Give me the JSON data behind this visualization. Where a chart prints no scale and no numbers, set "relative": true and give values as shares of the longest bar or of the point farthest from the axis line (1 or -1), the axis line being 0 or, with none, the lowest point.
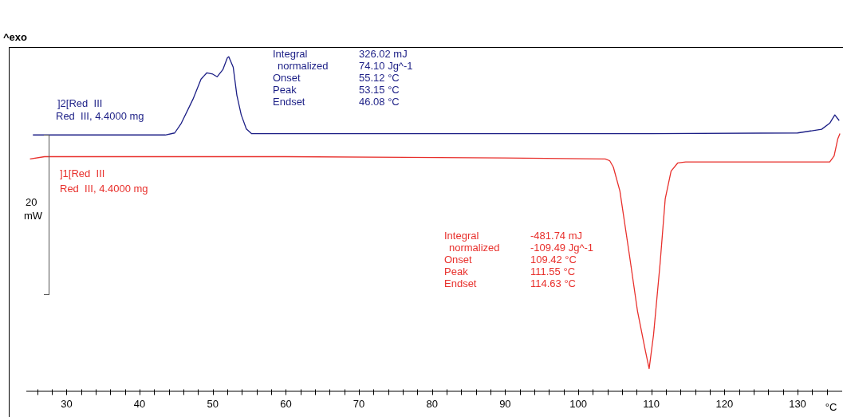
{
  "chart_data": {
    "type": "line",
    "relative": true,
    "xlabel": "°C",
    "xlim": [
      24.5,
      136
    ],
    "xticks": [
      {
        "value": 26,
        "label": null
      },
      {
        "value": 28,
        "label": null
      },
      30,
      {
        "value": 32,
        "label": null
      },
      {
        "value": 34,
        "label": null
      },
      {
        "value": 36,
        "label": null
      },
      {
        "value": 38,
        "label": null
      },
      40,
      {
        "value": 42,
        "label": null
      },
      {
        "value": 44,
        "label": null
      },
      {
        "value": 46,
        "label": null
      },
      {
        "value": 48,
        "label": null
      },
      50,
      {
        "value": 52,
        "label": null
      },
      {
        "value": 54,
        "label": null
      },
      {
        "value": 56,
        "label": null
      },
      {
        "value": 58,
        "label": null
      },
      60,
      {
        "value": 62,
        "label": null
      },
      {
        "value": 64,
        "label": null
      },
      {
        "value": 66,
        "label": null
      },
      {
        "value": 68,
        "label": null
      },
      70,
      {
        "value": 72,
        "label": null
      },
      {
        "value": 74,
        "label": null
      },
      {
        "value": 76,
        "label": null
      },
      {
        "value": 78,
        "label": null
      },
      80,
      {
        "value": 82,
        "label": null
      },
      {
        "value": 84,
        "label": null
      },
      {
        "value": 86,
        "label": null
      },
      {
        "value": 88,
        "label": null
      },
      90,
      {
        "value": 92,
        "label": null
      },
      {
        "value": 94,
        "label": null
      },
      {
        "value": 96,
        "label": null
      },
      {
        "value": 98,
        "label": null
      },
      100,
      {
        "value": 102,
        "label": null
      },
      {
        "value": 104,
        "label": null
      },
      {
        "value": 106,
        "label": null
      },
      {
        "value": 108,
        "label": null
      },
      110,
      {
        "value": 112,
        "label": null
      },
      {
        "value": 114,
        "label": null
      },
      {
        "value": 116,
        "label": null
      },
      {
        "value": 118,
        "label": null
      },
      120,
      {
        "value": 122,
        "label": null
      },
      {
        "value": 124,
        "label": null
      },
      {
        "value": 126,
        "label": null
      },
      {
        "value": 128,
        "label": null
      },
      130,
      {
        "value": 132,
        "label": null
      },
      {
        "value": 134,
        "label": null
      }
    ],
    "grid": false,
    "legend": false,
    "series": [
      {
        "name": "]2[Red  III",
        "color": "#1c1f86",
        "x": [
          25.4,
          43.5,
          44.8,
          45.7,
          47.3,
          48.4,
          49.2,
          50.0,
          50.6,
          51.4,
          52.0,
          52.2,
          52.8,
          53.3,
          53.9,
          54.6,
          55.3,
          56.2,
          80.0,
          110.0,
          130.0,
          133.3,
          134.4,
          135.1,
          135.7
        ],
        "values": [
          0.766,
          0.766,
          0.772,
          0.801,
          0.873,
          0.933,
          0.952,
          0.948,
          0.94,
          0.962,
          0.997,
          1,
          0.969,
          0.885,
          0.826,
          0.784,
          0.77,
          0.77,
          0.77,
          0.77,
          0.772,
          0.783,
          0.801,
          0.826,
          0.809
        ]
      },
      {
        "name": "]1[Red  III",
        "color": "#e8302c",
        "x": [
          25.0,
          27.0,
          60.0,
          90.0,
          103.7,
          104.3,
          104.8,
          105.7,
          107.0,
          108.1,
          109.2,
          109.7,
          110.3,
          111.2,
          111.9,
          112.7,
          113.6,
          114.7,
          125.0,
          134.4,
          135.0,
          135.5,
          135.8
        ],
        "values": [
          0.694,
          0.701,
          0.701,
          0.697,
          0.694,
          0.689,
          0.67,
          0.598,
          0.407,
          0.24,
          0.119,
          0.067,
          0.168,
          0.382,
          0.575,
          0.658,
          0.682,
          0.685,
          0.685,
          0.685,
          0.703,
          0.754,
          0.77
        ]
      }
    ],
    "annotations": [
      "^exo",
      "Red  III, 4.4000 mg",
      "Red  III, 4.4000 mg",
      "Integral",
      "326.02 mJ",
      "normalized",
      "74.10 Jg^-1",
      "Onset",
      "55.12 °C",
      "Peak",
      "53.15 °C",
      "Endset",
      "46.08 °C",
      "Integral",
      "-481.74 mJ",
      "normalized",
      "-109.49 Jg^-1",
      "Onset",
      "109.42 °C",
      "Peak",
      "111.55 °C",
      "Endset",
      "114.63 °C",
      "20",
      "mW"
    ]
  }
}
